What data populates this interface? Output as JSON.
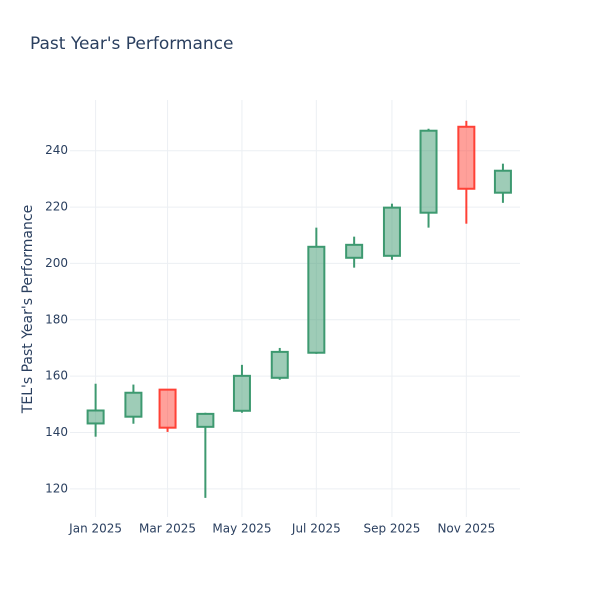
{
  "chart_data": {
    "type": "candlestick",
    "title": "Past Year's Performance",
    "y_label": "TEL's Past Year's Performance",
    "x": [
      "2025-01-01",
      "2025-02-01",
      "2025-03-01",
      "2025-04-01",
      "2025-05-01",
      "2025-06-01",
      "2025-07-01",
      "2025-08-01",
      "2025-09-01",
      "2025-10-01",
      "2025-11-01",
      "2025-12-01"
    ],
    "open": [
      143.2,
      145.6,
      155.2,
      142.0,
      147.7,
      159.4,
      168.3,
      202.0,
      202.7,
      218.0,
      248.5,
      225.1
    ],
    "high": [
      157.3,
      157.0,
      155.2,
      147.0,
      164.0,
      170.0,
      212.7,
      209.5,
      221.2,
      247.8,
      250.6,
      235.4
    ],
    "low": [
      138.5,
      143.1,
      140.2,
      116.8,
      147.0,
      158.7,
      167.9,
      198.5,
      201.3,
      212.7,
      214.1,
      221.5
    ],
    "close": [
      147.8,
      154.1,
      141.7,
      146.6,
      160.1,
      168.6,
      205.9,
      206.6,
      219.8,
      247.1,
      226.5,
      232.9
    ],
    "increasing_color": "#3d9970",
    "decreasing_color": "#ff4136",
    "xlim": [
      "2024-12-11",
      "2025-12-15"
    ],
    "xticks": [
      {
        "value": "2025-01-01",
        "label": "Jan 2025"
      },
      {
        "value": "2025-03-01",
        "label": "Mar 2025"
      },
      {
        "value": "2025-05-01",
        "label": "May 2025"
      },
      {
        "value": "2025-07-01",
        "label": "Jul 2025"
      },
      {
        "value": "2025-09-01",
        "label": "Sep 2025"
      },
      {
        "value": "2025-11-01",
        "label": "Nov 2025"
      }
    ],
    "ylim": [
      110,
      258
    ],
    "yticks": [
      120,
      140,
      160,
      180,
      200,
      220,
      240
    ],
    "grid": true
  }
}
